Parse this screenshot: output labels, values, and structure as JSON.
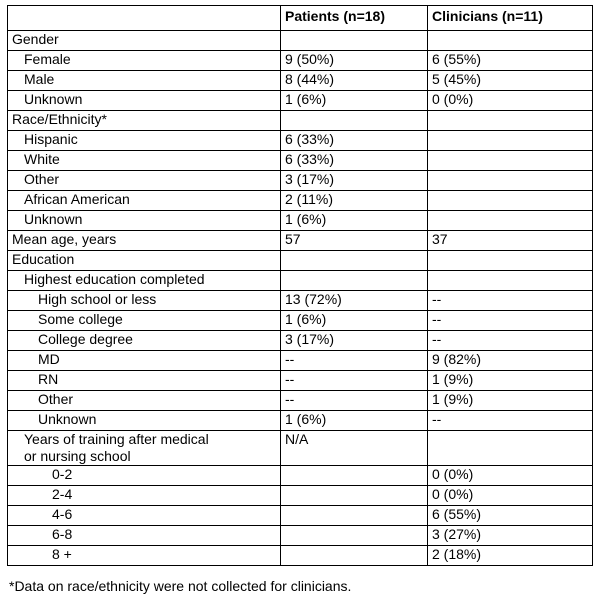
{
  "table": {
    "header": [
      null,
      "Patients (n=18)",
      "Clinicians (n=11)"
    ],
    "rows": [
      [
        "Gender",
        null,
        null
      ],
      [
        "Female",
        "9 (50%)",
        "6 (55%)"
      ],
      [
        "Male",
        "8 (44%)",
        "5 (45%)"
      ],
      [
        "Unknown",
        "1 (6%)",
        "0 (0%)"
      ],
      [
        "Race/Ethnicity*",
        null,
        null
      ],
      [
        "Hispanic",
        "6 (33%)",
        null
      ],
      [
        "White",
        "6 (33%)",
        null
      ],
      [
        "Other",
        "3 (17%)",
        null
      ],
      [
        "African American",
        "2 (11%)",
        null
      ],
      [
        "Unknown",
        "1 (6%)",
        null
      ],
      [
        "Mean age, years",
        "57",
        "37"
      ],
      [
        "Education",
        null,
        null
      ],
      [
        "Highest education completed",
        null,
        null
      ],
      [
        "High school or less",
        "13 (72%)",
        "--"
      ],
      [
        "Some college",
        "1 (6%)",
        "--"
      ],
      [
        "College degree",
        "3 (17%)",
        "--"
      ],
      [
        "MD",
        "--",
        "9 (82%)"
      ],
      [
        "RN",
        "--",
        "1 (9%)"
      ],
      [
        "Other",
        "--",
        "1 (9%)"
      ],
      [
        "Unknown",
        "1 (6%)",
        "--"
      ],
      [
        "Years of training after medical or nursing school",
        "N/A",
        null
      ],
      [
        "0-2",
        null,
        "0 (0%)"
      ],
      [
        "2-4",
        null,
        "0 (0%)"
      ],
      [
        "4-6",
        null,
        "6 (55%)"
      ],
      [
        "6-8",
        null,
        "3 (27%)"
      ],
      [
        "8 +",
        null,
        "2 (18%)"
      ]
    ],
    "footnote": "*Data on race/ethnicity were not collected for clinicians."
  }
}
